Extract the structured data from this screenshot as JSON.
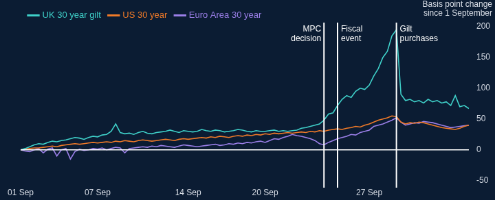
{
  "chart_data": {
    "type": "line",
    "y_label": "Basis point change since 1 September",
    "categories": [
      "01 Sep",
      null,
      null,
      null,
      null,
      null,
      null,
      null,
      null,
      null,
      null,
      null,
      null,
      null,
      null,
      null,
      null,
      "07 Sep",
      null,
      null,
      null,
      null,
      null,
      null,
      null,
      null,
      null,
      null,
      null,
      null,
      null,
      null,
      null,
      null,
      null,
      null,
      null,
      "14 Sep",
      null,
      null,
      null,
      null,
      null,
      null,
      null,
      null,
      null,
      null,
      null,
      null,
      null,
      null,
      null,
      null,
      "20 Sep",
      null,
      null,
      null,
      null,
      null,
      null,
      null,
      null,
      null,
      null,
      null,
      null,
      null,
      null,
      null,
      null,
      null,
      null,
      null,
      null,
      null,
      null,
      "27 Sep",
      null,
      null,
      null,
      null,
      null,
      null,
      null,
      null,
      null,
      null,
      null,
      null,
      null,
      null,
      null,
      null,
      null,
      null,
      null,
      null,
      null,
      null
    ],
    "series": [
      {
        "name": "UK 30 year gilt",
        "color": "#3fd0c9",
        "values": [
          0,
          2,
          5,
          8,
          10,
          9,
          12,
          14,
          13,
          15,
          16,
          18,
          20,
          19,
          17,
          20,
          22,
          21,
          24,
          25,
          30,
          42,
          28,
          26,
          27,
          25,
          28,
          30,
          27,
          26,
          28,
          29,
          30,
          32,
          30,
          28,
          31,
          30,
          29,
          30,
          33,
          31,
          30,
          32,
          31,
          29,
          30,
          31,
          33,
          32,
          30,
          29,
          31,
          30,
          30,
          31,
          32,
          30,
          31,
          30,
          31,
          32,
          35,
          36,
          38,
          40,
          42,
          48,
          58,
          60,
          72,
          82,
          88,
          85,
          95,
          100,
          98,
          105,
          120,
          132,
          150,
          160,
          185,
          195,
          90,
          80,
          82,
          78,
          80,
          76,
          82,
          78,
          80,
          76,
          78,
          72,
          88,
          70,
          72,
          67
        ]
      },
      {
        "name": "US 30 year",
        "color": "#f07a28",
        "values": [
          0,
          1,
          2,
          3,
          3,
          4,
          5,
          6,
          5,
          7,
          8,
          9,
          10,
          9,
          10,
          11,
          12,
          11,
          12,
          13,
          12,
          14,
          13,
          15,
          14,
          13,
          15,
          16,
          15,
          14,
          15,
          16,
          17,
          16,
          15,
          17,
          18,
          17,
          18,
          19,
          20,
          19,
          21,
          20,
          22,
          21,
          20,
          22,
          23,
          22,
          24,
          23,
          25,
          24,
          26,
          25,
          27,
          26,
          27,
          28,
          27,
          28,
          29,
          28,
          30,
          29,
          31,
          30,
          32,
          33,
          34,
          33,
          35,
          36,
          38,
          37,
          40,
          42,
          45,
          48,
          50,
          52,
          55,
          54,
          45,
          42,
          44,
          43,
          45,
          44,
          42,
          40,
          38,
          36,
          35,
          34,
          33,
          35,
          38,
          40
        ]
      },
      {
        "name": "Euro Area 30 year",
        "color": "#9b7fe8",
        "values": [
          0,
          -2,
          -3,
          0,
          2,
          -5,
          1,
          3,
          -10,
          0,
          2,
          -15,
          -3,
          1,
          -1,
          0,
          2,
          1,
          3,
          0,
          2,
          4,
          3,
          -5,
          2,
          3,
          4,
          5,
          4,
          6,
          5,
          7,
          6,
          5,
          4,
          6,
          8,
          7,
          6,
          5,
          6,
          7,
          8,
          9,
          7,
          8,
          10,
          9,
          11,
          10,
          12,
          11,
          13,
          14,
          12,
          15,
          18,
          17,
          20,
          22,
          25,
          23,
          22,
          20,
          18,
          15,
          10,
          8,
          12,
          15,
          18,
          20,
          22,
          25,
          24,
          28,
          30,
          32,
          38,
          40,
          42,
          45,
          48,
          52,
          45,
          40,
          42,
          44,
          43,
          46,
          45,
          44,
          42,
          40,
          38,
          36,
          37,
          38,
          39,
          40
        ]
      }
    ],
    "ylim": [
      -50,
      200
    ],
    "yticks": [
      -50,
      0,
      50,
      100,
      150,
      200
    ],
    "grid": false,
    "legend": "top-left",
    "annotations": [
      {
        "label": "MPC decision",
        "at": 67
      },
      {
        "label": "Fiscal event",
        "at": 70
      },
      {
        "label": "Gilt purchases",
        "at": 83
      }
    ]
  }
}
